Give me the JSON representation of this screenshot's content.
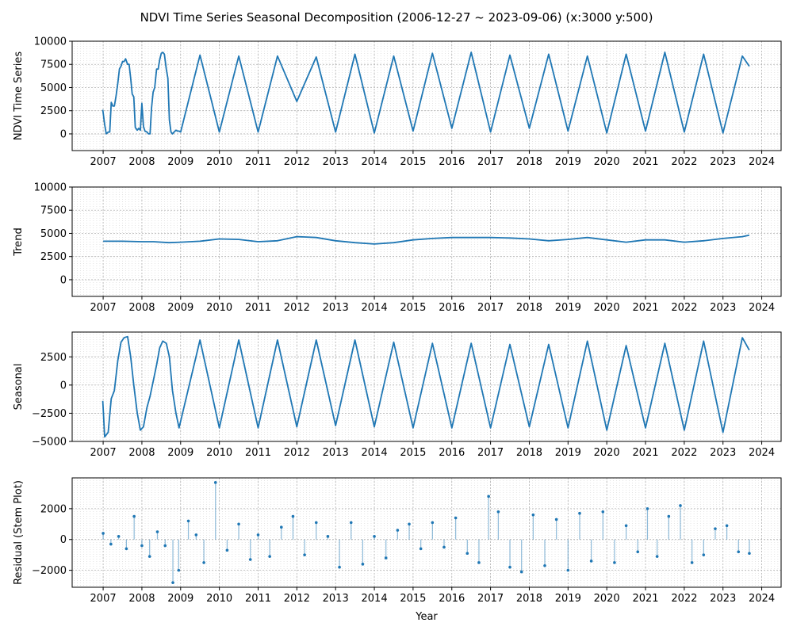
{
  "figure": {
    "title": "NDVI Time Series Seasonal Decomposition (2006-12-27 ~ 2023-09-06) (x:3000 y:500)",
    "xlabel": "Year"
  },
  "chart_data": [
    {
      "type": "line",
      "ylabel": "NDVI Time Series",
      "ylim": [
        -1800,
        10000
      ],
      "xlim": [
        2006.2,
        2024.5
      ],
      "yticks": [
        0,
        2500,
        5000,
        7500,
        10000
      ],
      "xticks": [
        2007,
        2008,
        2009,
        2010,
        2011,
        2012,
        2013,
        2014,
        2015,
        2016,
        2017,
        2018,
        2019,
        2020,
        2021,
        2022,
        2023,
        2024
      ],
      "grid": true,
      "color": "#1f77b4",
      "series": [
        {
          "x": [
            2006.99,
            2007.04,
            2007.08,
            2007.13,
            2007.17,
            2007.21,
            2007.25,
            2007.29,
            2007.33,
            2007.38,
            2007.42,
            2007.46,
            2007.5,
            2007.54,
            2007.58,
            2007.63,
            2007.67,
            2007.71,
            2007.75,
            2007.79,
            2007.83,
            2007.88,
            2007.92,
            2007.96,
            2008.0,
            2008.04,
            2008.08,
            2008.13,
            2008.17,
            2008.21,
            2008.25,
            2008.29,
            2008.33,
            2008.38,
            2008.42,
            2008.46,
            2008.5,
            2008.54,
            2008.58,
            2008.63,
            2008.67,
            2008.71,
            2008.75,
            2008.79,
            2008.83,
            2008.88,
            2008.92,
            2008.96,
            2009.0,
            2009.5,
            2010.0,
            2010.5,
            2011.0,
            2011.5,
            2012.0,
            2012.5,
            2013.0,
            2013.5,
            2014.0,
            2014.5,
            2015.0,
            2015.5,
            2016.0,
            2016.5,
            2017.0,
            2017.5,
            2018.0,
            2018.5,
            2019.0,
            2019.5,
            2020.0,
            2020.5,
            2021.0,
            2021.5,
            2022.0,
            2022.5,
            2023.0,
            2023.5,
            2023.68
          ],
          "values": [
            2600,
            1000,
            0,
            200,
            200,
            3400,
            3000,
            3000,
            4000,
            5500,
            7000,
            7300,
            7800,
            7800,
            8100,
            7500,
            7500,
            6000,
            4300,
            4000,
            700,
            400,
            600,
            400,
            3300,
            800,
            300,
            200,
            0,
            0,
            2800,
            4500,
            5000,
            7000,
            7000,
            8000,
            8700,
            8800,
            8600,
            7000,
            6000,
            1500,
            200,
            0,
            200,
            400,
            300,
            300,
            200,
            8500,
            200,
            8400,
            200,
            8400,
            3500,
            8300,
            200,
            8600,
            100,
            8400,
            300,
            8700,
            600,
            8800,
            200,
            8500,
            600,
            8600,
            300,
            8400,
            100,
            8600,
            300,
            8800,
            200,
            8600,
            100,
            8400,
            7300
          ]
        }
      ]
    },
    {
      "type": "line",
      "ylabel": "Trend",
      "ylim": [
        -1800,
        10000
      ],
      "xlim": [
        2006.2,
        2024.5
      ],
      "yticks": [
        0,
        2500,
        5000,
        7500,
        10000
      ],
      "xticks": [
        2007,
        2008,
        2009,
        2010,
        2011,
        2012,
        2013,
        2014,
        2015,
        2016,
        2017,
        2018,
        2019,
        2020,
        2021,
        2022,
        2023,
        2024
      ],
      "grid": true,
      "color": "#1f77b4",
      "series": [
        {
          "x": [
            2007.0,
            2007.5,
            2008.0,
            2008.3,
            2008.7,
            2009.0,
            2009.5,
            2010.0,
            2010.5,
            2011.0,
            2011.5,
            2012.0,
            2012.5,
            2013.0,
            2013.5,
            2014.0,
            2014.5,
            2015.0,
            2015.5,
            2016.0,
            2016.5,
            2017.0,
            2017.5,
            2018.0,
            2018.5,
            2019.0,
            2019.5,
            2020.0,
            2020.5,
            2021.0,
            2021.5,
            2022.0,
            2022.5,
            2023.0,
            2023.5,
            2023.68
          ],
          "values": [
            4150,
            4150,
            4100,
            4100,
            4000,
            4050,
            4150,
            4400,
            4350,
            4100,
            4200,
            4650,
            4550,
            4200,
            4000,
            3850,
            4000,
            4300,
            4450,
            4550,
            4550,
            4550,
            4500,
            4400,
            4200,
            4350,
            4550,
            4300,
            4050,
            4300,
            4300,
            4050,
            4200,
            4450,
            4650,
            4800
          ]
        }
      ]
    },
    {
      "type": "line",
      "ylabel": "Seasonal",
      "ylim": [
        -5000,
        4700
      ],
      "xlim": [
        2006.2,
        2024.5
      ],
      "yticks": [
        -5000,
        -2500,
        0,
        2500
      ],
      "xticks": [
        2007,
        2008,
        2009,
        2010,
        2011,
        2012,
        2013,
        2014,
        2015,
        2016,
        2017,
        2018,
        2019,
        2020,
        2021,
        2022,
        2023,
        2024
      ],
      "grid": true,
      "color": "#1f77b4",
      "series": [
        {
          "x": [
            2006.99,
            2007.04,
            2007.13,
            2007.21,
            2007.29,
            2007.38,
            2007.46,
            2007.54,
            2007.63,
            2007.71,
            2007.79,
            2007.88,
            2007.96,
            2008.04,
            2008.13,
            2008.21,
            2008.29,
            2008.38,
            2008.46,
            2008.54,
            2008.63,
            2008.71,
            2008.79,
            2008.88,
            2008.96,
            2009.5,
            2010.0,
            2010.5,
            2011.0,
            2011.5,
            2012.0,
            2012.5,
            2013.0,
            2013.5,
            2014.0,
            2014.5,
            2015.0,
            2015.5,
            2016.0,
            2016.5,
            2017.0,
            2017.5,
            2018.0,
            2018.5,
            2019.0,
            2019.5,
            2020.0,
            2020.5,
            2021.0,
            2021.5,
            2022.0,
            2022.5,
            2023.0,
            2023.5,
            2023.68
          ],
          "values": [
            -1400,
            -4600,
            -4200,
            -1200,
            -500,
            2200,
            3800,
            4200,
            4300,
            2500,
            0,
            -2500,
            -4000,
            -3700,
            -2000,
            -1000,
            300,
            1800,
            3300,
            3900,
            3700,
            2500,
            -500,
            -2500,
            -3800,
            4000,
            -3800,
            4000,
            -3800,
            4000,
            -3700,
            4000,
            -3600,
            4000,
            -3700,
            3800,
            -3800,
            3700,
            -3800,
            3700,
            -3800,
            3600,
            -3700,
            3600,
            -3800,
            3900,
            -4000,
            3500,
            -3800,
            3700,
            -4000,
            3900,
            -4200,
            4200,
            3100
          ]
        }
      ]
    },
    {
      "type": "stem",
      "ylabel": "Residual (Stem Plot)",
      "ylim": [
        -3100,
        4000
      ],
      "xlim": [
        2006.2,
        2024.5
      ],
      "yticks": [
        -2000,
        0,
        2000
      ],
      "xticks": [
        2007,
        2008,
        2009,
        2010,
        2011,
        2012,
        2013,
        2014,
        2015,
        2016,
        2017,
        2018,
        2019,
        2020,
        2021,
        2022,
        2023,
        2024
      ],
      "grid": true,
      "color": "#1f77b4",
      "series": [
        {
          "x": [
            2007.0,
            2007.2,
            2007.4,
            2007.6,
            2007.8,
            2008.0,
            2008.2,
            2008.4,
            2008.6,
            2008.8,
            2008.95,
            2009.2,
            2009.4,
            2009.6,
            2009.9,
            2010.2,
            2010.5,
            2010.8,
            2011.0,
            2011.3,
            2011.6,
            2011.9,
            2012.2,
            2012.5,
            2012.8,
            2013.1,
            2013.4,
            2013.7,
            2014.0,
            2014.3,
            2014.6,
            2014.9,
            2015.2,
            2015.5,
            2015.8,
            2016.1,
            2016.4,
            2016.7,
            2016.95,
            2017.2,
            2017.5,
            2017.8,
            2018.1,
            2018.4,
            2018.7,
            2019.0,
            2019.3,
            2019.6,
            2019.9,
            2020.2,
            2020.5,
            2020.8,
            2021.05,
            2021.3,
            2021.6,
            2021.9,
            2022.2,
            2022.5,
            2022.8,
            2023.1,
            2023.4,
            2023.68
          ],
          "values": [
            400,
            -300,
            200,
            -600,
            1500,
            -400,
            -1100,
            500,
            -400,
            -2800,
            -2000,
            1200,
            300,
            -1500,
            3700,
            -700,
            1000,
            -1300,
            300,
            -1100,
            800,
            1500,
            -1000,
            1100,
            200,
            -1800,
            1100,
            -1600,
            200,
            -1200,
            600,
            1000,
            -600,
            1100,
            -500,
            1400,
            -900,
            -1500,
            2800,
            1800,
            -1800,
            -2100,
            1600,
            -1700,
            1300,
            -2000,
            1700,
            -1400,
            1800,
            -1500,
            900,
            -800,
            2000,
            -1100,
            1500,
            2200,
            -1500,
            -1000,
            700,
            900,
            -800,
            -900
          ]
        }
      ]
    }
  ]
}
